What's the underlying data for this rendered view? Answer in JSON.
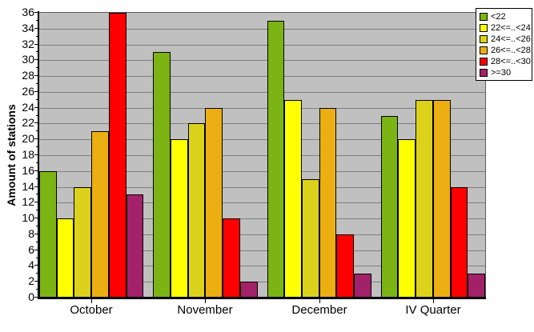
{
  "figure": {
    "background": "#FFFFFF"
  },
  "chart_data": {
    "type": "bar",
    "title": "",
    "xlabel": "",
    "ylabel": "Amount of stations",
    "ylim": [
      0,
      36
    ],
    "ytick_step": 2,
    "grid": "horizontal",
    "legend_position": "top-right",
    "plot_bg": "#C0C0C0",
    "gridline_color": "#808080",
    "axis_color": "#000000",
    "bar_border_color": "#000000",
    "categories": [
      "October",
      "November",
      "December",
      "IV Quarter"
    ],
    "series": [
      {
        "name": "<22",
        "color": "#7CB414",
        "values": [
          16,
          31,
          35,
          23
        ]
      },
      {
        "name": "22<=..<24",
        "color": "#FFFF00",
        "values": [
          10,
          20,
          25,
          20
        ]
      },
      {
        "name": "24<=..<26",
        "color": "#DCD21C",
        "values": [
          14,
          22,
          15,
          25
        ]
      },
      {
        "name": "26<=..<28",
        "color": "#ECAF12",
        "values": [
          21,
          24,
          24,
          25
        ]
      },
      {
        "name": "28<=..<30",
        "color": "#FF0000",
        "values": [
          36,
          10,
          8,
          14
        ]
      },
      {
        "name": ">=30",
        "color": "#A32169",
        "values": [
          13,
          2,
          3,
          3
        ]
      }
    ]
  }
}
